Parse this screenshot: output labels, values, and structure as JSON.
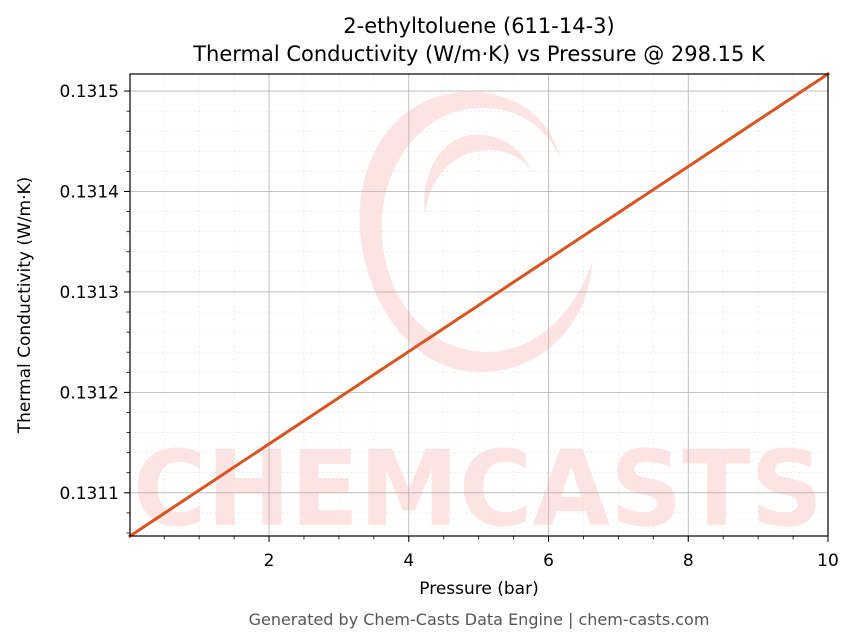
{
  "chart_data": {
    "type": "line",
    "title_line1": "2-ethyltoluene (611-14-3)",
    "title_line2": "Thermal Conductivity (W/m·K) vs Pressure @ 298.15 K",
    "xlabel": "Pressure (bar)",
    "ylabel": "Thermal Conductivity (W/m·K)",
    "xlim": [
      0.01,
      10
    ],
    "ylim": [
      0.131057,
      0.131517
    ],
    "x_ticks": [
      2,
      4,
      6,
      8,
      10
    ],
    "x_tick_labels": [
      "2",
      "4",
      "6",
      "8",
      "10"
    ],
    "y_ticks": [
      0.1311,
      0.1312,
      0.1313,
      0.1314,
      0.1315
    ],
    "y_tick_labels": [
      "0.1311",
      "0.1312",
      "0.1313",
      "0.1314",
      "0.1315"
    ],
    "grid": true,
    "series": [
      {
        "color": "#d9531e",
        "x": [
          0.01,
          10
        ],
        "y": [
          0.131057,
          0.131517
        ]
      }
    ]
  },
  "watermark": {
    "text": "CHEMCASTS",
    "color": "#fde3e1"
  },
  "footer": "Generated by Chem-Casts Data Engine | chem-casts.com"
}
